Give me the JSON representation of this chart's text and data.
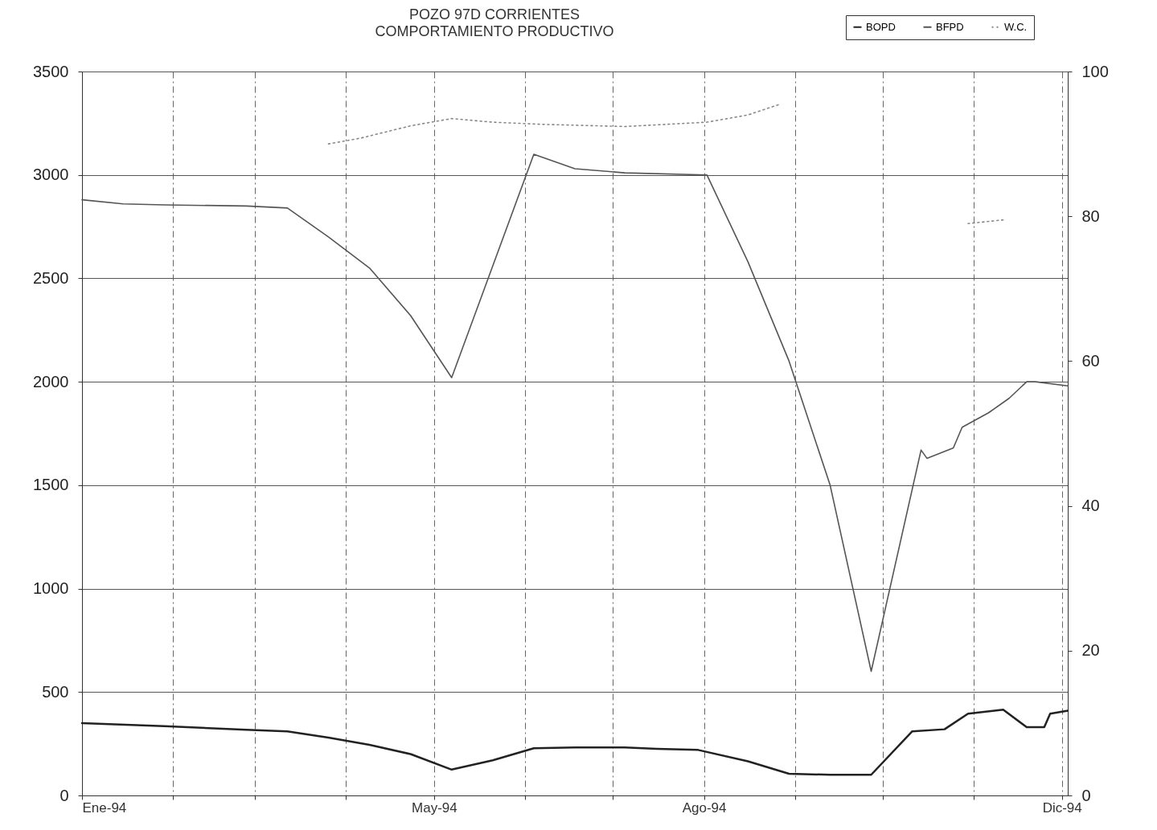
{
  "chart_data": {
    "type": "line",
    "title": "POZO 97D CORRIENTES",
    "subtitle": "COMPORTAMIENTO PRODUCTIVO",
    "xlim": [
      "1994-01-01",
      "1994-12-03"
    ],
    "xticks": [
      {
        "value": "1994-01-01",
        "label": "Ene-94"
      },
      {
        "value": "1994-02-01",
        "label": null
      },
      {
        "value": "1994-03-01",
        "label": null
      },
      {
        "value": "1994-04-01",
        "label": null
      },
      {
        "value": "1994-05-01",
        "label": "May-94"
      },
      {
        "value": "1994-06-01",
        "label": null
      },
      {
        "value": "1994-07-01",
        "label": null
      },
      {
        "value": "1994-08-01",
        "label": "Ago-94"
      },
      {
        "value": "1994-09-01",
        "label": null
      },
      {
        "value": "1994-10-01",
        "label": null
      },
      {
        "value": "1994-11-01",
        "label": null
      },
      {
        "value": "1994-12-01",
        "label": "Dic-94"
      }
    ],
    "ylim": [
      0,
      3500
    ],
    "yticks": [
      0,
      500,
      1000,
      1500,
      2000,
      2500,
      3000,
      3500
    ],
    "y2lim": [
      0,
      100
    ],
    "y2ticks": [
      0,
      20,
      40,
      60,
      80,
      100
    ],
    "grid": true,
    "legend": "top right",
    "series": [
      {
        "name": "BOPD",
        "color": "#222222",
        "line_style": "solid",
        "x": [
          "1994-01-01",
          "1994-01-29",
          "1994-02-26",
          "1994-03-12",
          "1994-03-26",
          "1994-04-09",
          "1994-04-23",
          "1994-05-07",
          "1994-05-21",
          "1994-06-04",
          "1994-06-18",
          "1994-07-05",
          "1994-07-16",
          "1994-07-30",
          "1994-08-16",
          "1994-08-30",
          "1994-09-13",
          "1994-09-27",
          "1994-10-11",
          "1994-10-22",
          "1994-10-30",
          "1994-11-11",
          "1994-11-19",
          "1994-11-25",
          "1994-11-27",
          "1994-12-03"
        ],
        "values": [
          350,
          335,
          318,
          310,
          280,
          245,
          200,
          125,
          170,
          228,
          232,
          232,
          225,
          220,
          165,
          105,
          100,
          100,
          310,
          320,
          395,
          415,
          330,
          330,
          395,
          410
        ]
      },
      {
        "name": "BFPD",
        "color": "#555555",
        "line_style": "solid",
        "x": [
          "1994-01-01",
          "1994-01-15",
          "1994-01-29",
          "1994-02-26",
          "1994-03-12",
          "1994-03-26",
          "1994-04-09",
          "1994-04-23",
          "1994-05-07",
          "1994-05-21",
          "1994-06-04",
          "1994-06-18",
          "1994-07-05",
          "1994-08-02",
          "1994-08-16",
          "1994-08-30",
          "1994-09-13",
          "1994-09-27",
          "1994-10-14",
          "1994-10-16",
          "1994-10-25",
          "1994-10-28",
          "1994-11-06",
          "1994-11-13",
          "1994-11-19",
          "1994-11-22",
          "1994-12-03"
        ],
        "values": [
          2880,
          2860,
          2855,
          2850,
          2840,
          2700,
          2550,
          2320,
          2020,
          2560,
          3100,
          3030,
          3010,
          3000,
          2580,
          2100,
          1500,
          600,
          1670,
          1630,
          1680,
          1780,
          1850,
          1920,
          2000,
          2000,
          1980
        ]
      },
      {
        "name": "W.C.",
        "color": "#888888",
        "line_style": "dotted",
        "axis": "y2",
        "x": [
          "1994-03-26",
          "1994-04-06",
          "1994-04-23",
          "1994-05-07",
          "1994-05-21",
          "1994-06-07",
          "1994-07-05",
          "1994-08-02",
          "1994-08-16",
          "1994-08-27",
          "1994-08-30",
          "1994-10-30",
          "1994-11-11"
        ],
        "values": [
          90,
          90.8,
          92.5,
          93.5,
          93,
          92.7,
          92.4,
          93,
          94,
          95.5,
          null,
          79,
          79.5
        ]
      }
    ]
  }
}
